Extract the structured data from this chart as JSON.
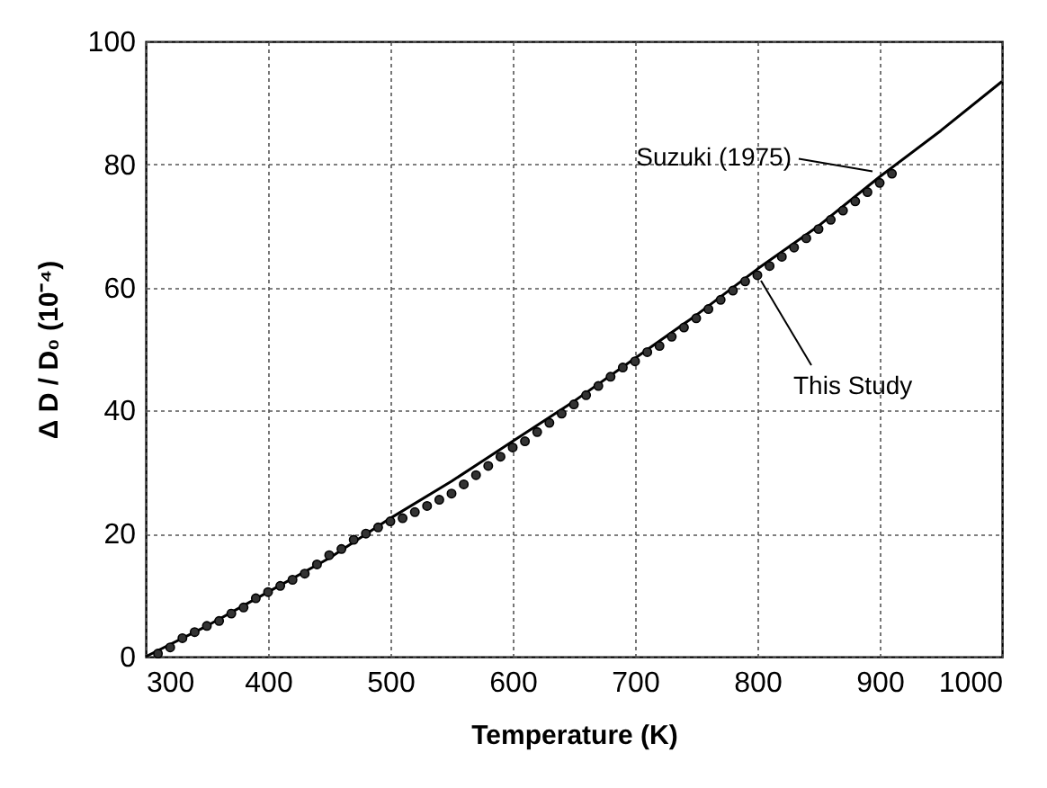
{
  "chart_data": {
    "type": "scatter",
    "xlabel": "Temperature (K)",
    "ylabel": "Δ D / D₀ (10⁻⁴)",
    "xlim": [
      300,
      1000
    ],
    "xticks": [
      300,
      400,
      500,
      600,
      700,
      800,
      900,
      1000
    ],
    "ylim": [
      0,
      100
    ],
    "yticks": [
      0,
      20,
      40,
      60,
      80,
      100
    ],
    "grid": true,
    "marker": "circle",
    "series": [
      {
        "name": "Suzuki (1975)",
        "type": "line",
        "marker": "none",
        "color": "#000000",
        "x": [
          300,
          350,
          400,
          450,
          500,
          550,
          600,
          650,
          700,
          750,
          800,
          850,
          900,
          950,
          1000
        ],
        "values": [
          0,
          5,
          10.5,
          16,
          22.5,
          28.5,
          35,
          41.5,
          48.5,
          55.5,
          63,
          70,
          78,
          85.5,
          93.5
        ]
      },
      {
        "name": "This Study",
        "color": "#333333",
        "x": [
          310,
          320,
          330,
          340,
          350,
          360,
          370,
          380,
          390,
          400,
          410,
          420,
          430,
          440,
          450,
          460,
          470,
          480,
          490,
          500,
          510,
          520,
          530,
          540,
          550,
          560,
          570,
          580,
          590,
          600,
          610,
          620,
          630,
          640,
          650,
          660,
          670,
          680,
          690,
          700,
          710,
          720,
          730,
          740,
          750,
          760,
          770,
          780,
          790,
          800,
          810,
          820,
          830,
          840,
          850,
          860,
          870,
          880,
          890,
          900,
          910
        ],
        "values": [
          0.5,
          1.5,
          3,
          4,
          5,
          5.8,
          7,
          8,
          9.5,
          10.5,
          11.5,
          12.5,
          13.5,
          15,
          16.5,
          17.5,
          19,
          20,
          21,
          22,
          22.5,
          23.5,
          24.5,
          25.5,
          26.5,
          28,
          29.5,
          31,
          32.5,
          34,
          35,
          36.5,
          38,
          39.5,
          41,
          42.5,
          44,
          45.5,
          47,
          48,
          49.5,
          50.5,
          52,
          53.5,
          55,
          56.5,
          58,
          59.5,
          61,
          62,
          63.5,
          65,
          66.5,
          68,
          69.5,
          71,
          72.5,
          74,
          75.5,
          77,
          78.5
        ]
      }
    ]
  }
}
